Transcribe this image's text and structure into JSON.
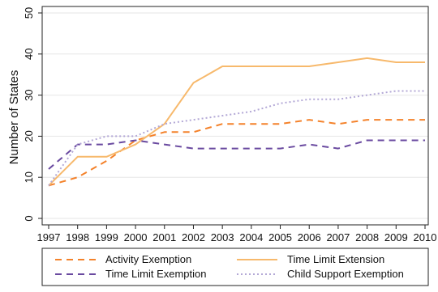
{
  "chart_data": {
    "type": "line",
    "ylabel": "Number of States",
    "xlabel": "",
    "x": [
      1997,
      1998,
      1999,
      2000,
      2001,
      2002,
      2003,
      2004,
      2005,
      2006,
      2007,
      2008,
      2009,
      2010
    ],
    "xticks": [
      "1997",
      "1998",
      "1999",
      "2000",
      "2001",
      "2002",
      "2003",
      "2004",
      "2005",
      "2006",
      "2007",
      "2008",
      "2009",
      "2010"
    ],
    "ylim": [
      0,
      50
    ],
    "yticks": [
      "0",
      "10",
      "20",
      "30",
      "40",
      "50"
    ],
    "grid": "horizontal",
    "legend_position": "bottom",
    "series": [
      {
        "name": "Activity Exemption",
        "color": "#f4822b",
        "style": "dashed",
        "values": [
          8,
          10,
          14,
          19,
          21,
          21,
          23,
          23,
          23,
          24,
          23,
          24,
          24,
          24
        ]
      },
      {
        "name": "Time Limit Extension",
        "color": "#f7b96c",
        "style": "solid",
        "values": [
          8,
          15,
          15,
          18,
          23,
          33,
          37,
          37,
          37,
          37,
          38,
          39,
          38,
          38
        ]
      },
      {
        "name": "Time Limit Exemption",
        "color": "#6a4aa0",
        "style": "dashed",
        "values": [
          12,
          18,
          18,
          19,
          18,
          17,
          17,
          17,
          17,
          18,
          17,
          19,
          19,
          19
        ]
      },
      {
        "name": "Child Support Exemption",
        "color": "#b3a8d6",
        "style": "dotted",
        "values": [
          8,
          18,
          20,
          20,
          23,
          24,
          25,
          26,
          28,
          29,
          29,
          30,
          31,
          31
        ]
      }
    ]
  }
}
